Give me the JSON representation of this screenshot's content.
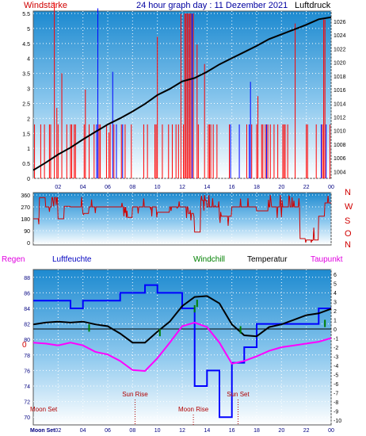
{
  "header": {
    "title": "24 hour graph day : 11 Dezember 2021",
    "left_label": "Windstärke",
    "right_label": "Luftdruck"
  },
  "wind_dir_labels": [
    "N",
    "W",
    "S",
    "O",
    "N"
  ],
  "bottom_labels": {
    "regen": "Regen",
    "luftfeuchte": "Luftfeuchte",
    "windchill": "Windchill",
    "temperatur": "Temperatur",
    "taupunkt": "Taupunkt"
  },
  "events": [
    {
      "label": "Moon Set",
      "hour": 0.3
    },
    {
      "label": "Sun Rise",
      "hour": 8.2
    },
    {
      "label": "Moon Rise",
      "hour": 12.9
    },
    {
      "label": "Sun Set",
      "hour": 16.5
    }
  ],
  "bottom_left_label": "Moon Set",
  "colors": {
    "wind": "#ff0000",
    "gust": "#0000ff",
    "pressure": "#000000",
    "humidity": "#0000ff",
    "temperature": "#000000",
    "dewpoint": "#ff00ff",
    "windchill": "#008000",
    "title": "#0000a0"
  },
  "chart_data": [
    {
      "type": "line",
      "name": "wind-pressure",
      "x_ticks": [
        "02",
        "04",
        "06",
        "08",
        "10",
        "12",
        "14",
        "16",
        "18",
        "20",
        "22",
        "00"
      ],
      "y_left_ticks": [
        "0",
        "0.5",
        "1",
        "1.5",
        "2",
        "2.5",
        "3",
        "3.5",
        "4",
        "4.5",
        "5",
        "5.5"
      ],
      "y_left_range": [
        0,
        5.5
      ],
      "y_right_ticks": [
        "1004",
        "1006",
        "1008",
        "1010",
        "1012",
        "1014",
        "1016",
        "1018",
        "1020",
        "1022",
        "1024",
        "1026"
      ],
      "y_right_range": [
        1003,
        1027.5
      ],
      "series": [
        {
          "name": "Luftdruck",
          "axis": "right",
          "x": [
            0,
            1,
            2,
            3,
            4,
            5,
            6,
            7,
            8,
            9,
            10,
            11,
            12,
            13,
            14,
            15,
            16,
            17,
            18,
            19,
            20,
            21,
            22,
            23,
            24
          ],
          "values": [
            1004.2,
            1005.3,
            1006.5,
            1007.5,
            1008.7,
            1009.8,
            1010.9,
            1011.8,
            1012.8,
            1013.9,
            1015.2,
            1016.1,
            1017.2,
            1017.7,
            1018.6,
            1019.7,
            1020.6,
            1021.5,
            1022.4,
            1023.4,
            1024.1,
            1024.8,
            1025.5,
            1026.3,
            1026.6
          ]
        }
      ]
    },
    {
      "type": "line",
      "name": "wind-direction",
      "y_ticks": [
        "360",
        "270",
        "180",
        "90",
        "0"
      ],
      "y_range": [
        0,
        360
      ],
      "x": [
        0,
        0.5,
        1,
        1.5,
        2,
        2.5,
        3,
        3.5,
        4,
        4.5,
        5,
        6,
        7,
        7.5,
        8,
        9,
        10,
        11,
        12,
        12.5,
        13,
        13.5,
        14,
        15,
        16,
        17,
        18,
        19,
        20,
        21,
        21.5,
        22,
        22.5,
        23,
        23.5,
        24
      ],
      "values": [
        180,
        340,
        270,
        340,
        180,
        275,
        270,
        270,
        220,
        270,
        270,
        270,
        270,
        190,
        270,
        270,
        230,
        270,
        270,
        220,
        80,
        320,
        270,
        200,
        270,
        270,
        240,
        270,
        270,
        270,
        30,
        20,
        20,
        200,
        300,
        300
      ]
    },
    {
      "type": "line",
      "name": "humidity-temperature",
      "x_ticks": [
        "02",
        "04",
        "06",
        "08",
        "10",
        "12",
        "14",
        "16",
        "18",
        "20",
        "22",
        "00"
      ],
      "y_left_ticks": [
        "70",
        "72",
        "74",
        "76",
        "78",
        "80",
        "82",
        "84",
        "86",
        "88"
      ],
      "y_left_range": [
        69,
        89
      ],
      "y_right_ticks": [
        "-10",
        "-9",
        "-8",
        "-7",
        "-6",
        "-5",
        "-4",
        "-3",
        "-2",
        "-1",
        "0",
        "1",
        "2",
        "3",
        "4",
        "5",
        "6"
      ],
      "y_right_range": [
        -10.5,
        6.5
      ],
      "series": [
        {
          "name": "Luftfeuchte",
          "axis": "left",
          "x": [
            0,
            1,
            2,
            3,
            4,
            5,
            6,
            7,
            8,
            9,
            10,
            11,
            12,
            13,
            14,
            15,
            16,
            17,
            18,
            19,
            20,
            21,
            22,
            23,
            24
          ],
          "values": [
            85,
            85,
            85,
            84,
            85,
            85,
            85,
            86,
            86,
            87,
            86,
            86,
            84,
            74,
            76,
            70,
            77,
            79,
            82,
            82,
            82,
            82,
            82,
            84,
            84
          ]
        },
        {
          "name": "Temperatur",
          "axis": "right",
          "x": [
            0,
            1,
            2,
            3,
            4,
            5,
            6,
            7,
            8,
            9,
            10,
            11,
            12,
            13,
            14,
            15,
            16,
            17,
            18,
            19,
            20,
            21,
            22,
            23,
            24
          ],
          "values": [
            0.5,
            0.7,
            0.8,
            0.7,
            0.8,
            0.5,
            0.3,
            -0.5,
            -1.5,
            -1.5,
            -0.3,
            0.8,
            2.5,
            3.5,
            3.6,
            2.8,
            0.5,
            -0.7,
            -0.8,
            0.2,
            0.5,
            1,
            1.5,
            1.7,
            2.2
          ]
        },
        {
          "name": "Taupunkt",
          "axis": "right",
          "x": [
            0,
            1,
            2,
            3,
            4,
            5,
            6,
            7,
            8,
            9,
            10,
            11,
            12,
            13,
            14,
            15,
            16,
            17,
            18,
            19,
            20,
            21,
            22,
            23,
            24
          ],
          "values": [
            -1.5,
            -1.6,
            -1.8,
            -1.5,
            -1.8,
            -2.5,
            -2.8,
            -3.5,
            -4.5,
            -4.6,
            -3.2,
            -1.5,
            0.3,
            0.7,
            0.2,
            -1.5,
            -3.8,
            -3.5,
            -3,
            -2.4,
            -2,
            -1.8,
            -1.6,
            -1.4,
            -1
          ]
        }
      ]
    }
  ]
}
